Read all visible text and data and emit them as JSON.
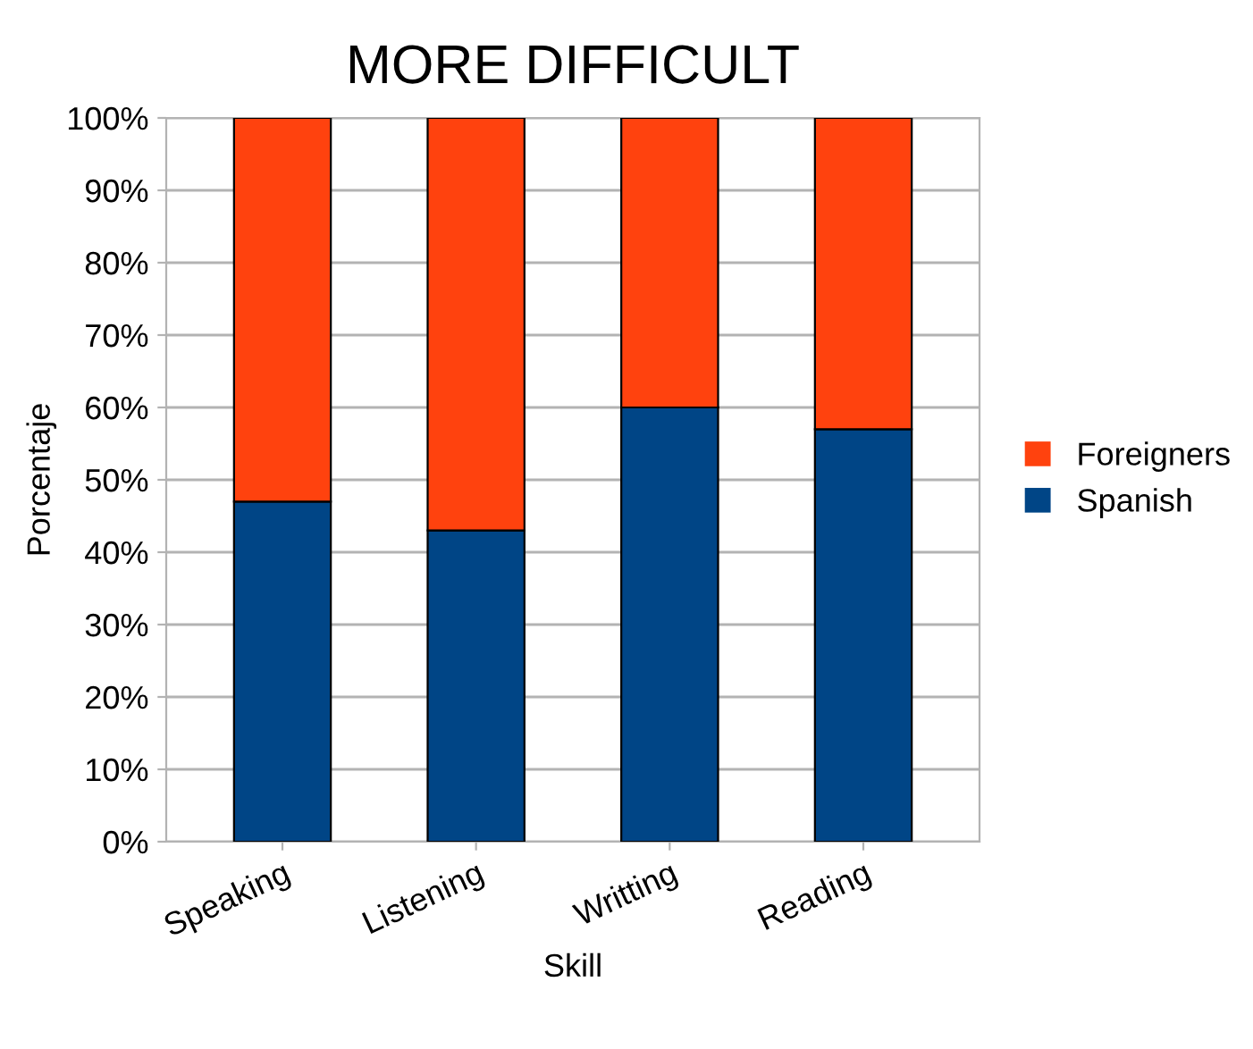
{
  "chart_data": {
    "type": "bar",
    "stacked": true,
    "title": "MORE DIFFICULT",
    "xlabel": "Skill",
    "ylabel": "Porcentaje",
    "categories": [
      "Speaking",
      "Listening",
      "Writting",
      "Reading"
    ],
    "series": [
      {
        "name": "Spanish",
        "color": "#004586",
        "values": [
          47,
          43,
          60,
          57
        ]
      },
      {
        "name": "Foreigners",
        "color": "#ff420e",
        "values": [
          53,
          57,
          40,
          43
        ]
      }
    ],
    "ylim": [
      0,
      100
    ],
    "yticks": [
      {
        "value": 0,
        "label": "0%"
      },
      {
        "value": 10,
        "label": "10%"
      },
      {
        "value": 20,
        "label": "20%"
      },
      {
        "value": 30,
        "label": "30%"
      },
      {
        "value": 40,
        "label": "40%"
      },
      {
        "value": 50,
        "label": "50%"
      },
      {
        "value": 60,
        "label": "60%"
      },
      {
        "value": 70,
        "label": "70%"
      },
      {
        "value": 80,
        "label": "80%"
      },
      {
        "value": 90,
        "label": "90%"
      },
      {
        "value": 100,
        "label": "100%"
      }
    ],
    "grid": "y",
    "legend": "right"
  }
}
